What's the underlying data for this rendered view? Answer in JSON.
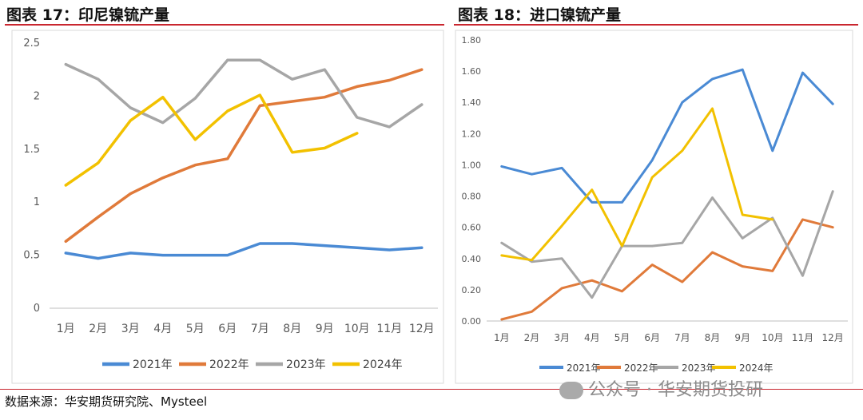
{
  "left": {
    "title": "图表 17：印尼镍锍产量",
    "chart_data": {
      "type": "line",
      "categories": [
        "1月",
        "2月",
        "3月",
        "4月",
        "5月",
        "6月",
        "7月",
        "8月",
        "9月",
        "10月",
        "11月",
        "12月"
      ],
      "yticks": [
        "0",
        "0.5",
        "1",
        "1.5",
        "2",
        "2.5"
      ],
      "ylim": [
        0,
        2.5
      ],
      "grid": false,
      "legend_position": "bottom",
      "series": [
        {
          "name": "2021年",
          "color": "#4a8ad4",
          "values": [
            0.52,
            0.47,
            0.52,
            0.5,
            0.5,
            0.5,
            0.61,
            0.61,
            0.59,
            0.57,
            0.55,
            0.57
          ]
        },
        {
          "name": "2022年",
          "color": "#e07a3a",
          "values": [
            0.63,
            0.86,
            1.08,
            1.23,
            1.35,
            1.41,
            1.91,
            1.95,
            1.99,
            2.09,
            2.15,
            2.25
          ]
        },
        {
          "name": "2023年",
          "color": "#a6a6a6",
          "values": [
            2.3,
            2.16,
            1.89,
            1.75,
            1.98,
            2.34,
            2.34,
            2.16,
            2.25,
            1.8,
            1.71,
            1.92
          ]
        },
        {
          "name": "2024年",
          "color": "#f2c100",
          "values": [
            1.16,
            1.37,
            1.77,
            1.99,
            1.59,
            1.86,
            2.01,
            1.47,
            1.51,
            1.65,
            null,
            null
          ]
        }
      ]
    }
  },
  "right": {
    "title": "图表 18：进口镍锍产量",
    "chart_data": {
      "type": "line",
      "categories": [
        "1月",
        "2月",
        "3月",
        "4月",
        "5月",
        "6月",
        "7月",
        "8月",
        "9月",
        "10月",
        "11月",
        "12月"
      ],
      "yticks": [
        "0.00",
        "0.20",
        "0.40",
        "0.60",
        "0.80",
        "1.00",
        "1.20",
        "1.40",
        "1.60",
        "1.80"
      ],
      "ylim": [
        0,
        1.8
      ],
      "grid": false,
      "legend_position": "bottom",
      "series": [
        {
          "name": "2021年",
          "color": "#4a8ad4",
          "values": [
            0.99,
            0.94,
            0.98,
            0.76,
            0.76,
            1.03,
            1.4,
            1.55,
            1.61,
            1.09,
            1.59,
            1.39
          ]
        },
        {
          "name": "2022年",
          "color": "#e07a3a",
          "values": [
            0.01,
            0.06,
            0.21,
            0.26,
            0.19,
            0.36,
            0.25,
            0.44,
            0.35,
            0.32,
            0.65,
            0.6
          ]
        },
        {
          "name": "2023年",
          "color": "#a6a6a6",
          "values": [
            0.5,
            0.38,
            0.4,
            0.15,
            0.48,
            0.48,
            0.5,
            0.79,
            0.53,
            0.66,
            0.29,
            0.83
          ]
        },
        {
          "name": "2024年",
          "color": "#f2c100",
          "values": [
            0.42,
            0.39,
            0.61,
            0.84,
            0.48,
            0.92,
            1.09,
            1.36,
            0.68,
            0.65,
            null,
            null
          ]
        }
      ]
    }
  },
  "source": "数据来源：华安期货研究院、Mysteel",
  "watermark": "公众号 · 华安期货投研"
}
